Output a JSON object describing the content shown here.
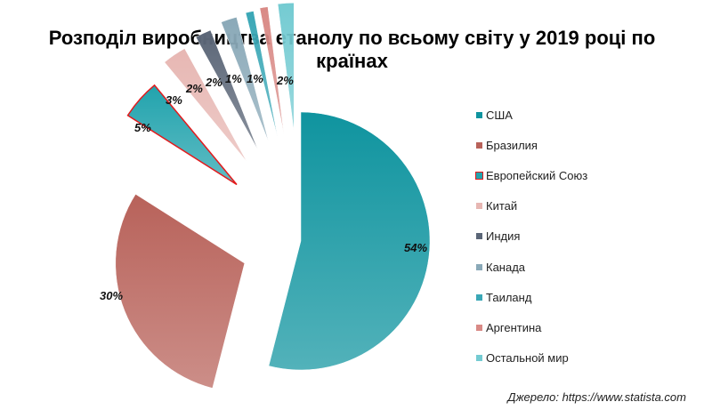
{
  "chart_data": {
    "type": "pie",
    "title": "Розподіл виробництва етанолу по всьому світу у 2019 році по країнах",
    "categories": [
      "США",
      "Бразилия",
      "Европейский Союз",
      "Китай",
      "Индия",
      "Канада",
      "Таиланд",
      "Аргентина",
      "Остальной мир"
    ],
    "values": [
      54,
      30,
      5,
      3,
      2,
      2,
      1,
      1,
      2
    ],
    "value_labels": [
      "54%",
      "30%",
      "5%",
      "3%",
      "2%",
      "2%",
      "1%",
      "1%",
      "2%"
    ],
    "colors": [
      "#0f949f",
      "#b8625a",
      "#22a3ad",
      "#e7b7b3",
      "#5b6677",
      "#8aa9b8",
      "#3aa7b6",
      "#d98a86",
      "#74cbd2"
    ],
    "exploded": [
      false,
      true,
      true,
      true,
      true,
      true,
      true,
      true,
      true
    ],
    "highlighted_slice": "Европейский Союз",
    "highlight_color": "#e31a1c",
    "legend_position": "right"
  },
  "source_note": "Джерело: https://www.statista.com"
}
